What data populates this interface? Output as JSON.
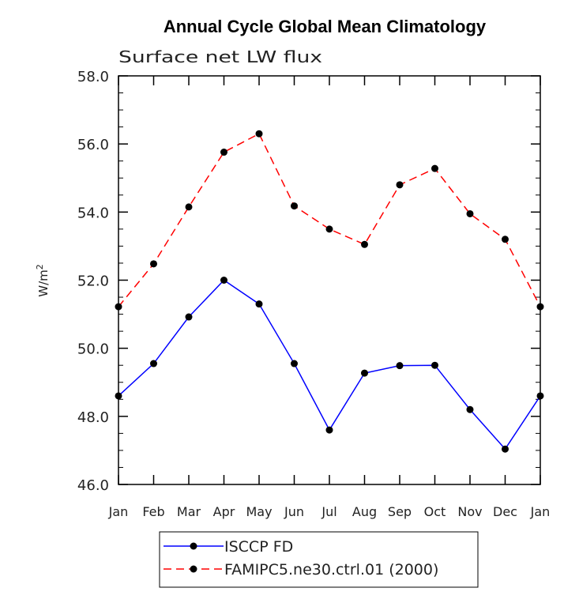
{
  "chart_data": {
    "type": "line",
    "title": "Annual Cycle Global Mean Climatology",
    "subtitle": "Surface net LW flux",
    "xlabel": "",
    "ylabel": "W/m",
    "ylabel_superscript": "2",
    "ylim": [
      46.0,
      58.0
    ],
    "y_ticks": [
      "46.0",
      "48.0",
      "50.0",
      "52.0",
      "54.0",
      "56.0",
      "58.0"
    ],
    "categories": [
      "Jan",
      "Feb",
      "Mar",
      "Apr",
      "May",
      "Jun",
      "Jul",
      "Aug",
      "Sep",
      "Oct",
      "Nov",
      "Dec",
      "Jan"
    ],
    "series": [
      {
        "name": "ISCCP FD",
        "color": "#0000ff",
        "dash": "solid",
        "values": [
          48.6,
          49.55,
          50.92,
          52.0,
          51.3,
          49.55,
          47.6,
          49.27,
          49.49,
          49.5,
          48.2,
          47.04,
          48.6
        ]
      },
      {
        "name": "FAMIPC5.ne30.ctrl.01 (2000)",
        "color": "#ff0000",
        "dash": "dashed",
        "values": [
          51.22,
          52.48,
          54.15,
          55.76,
          56.3,
          54.18,
          53.5,
          53.05,
          54.8,
          55.28,
          53.95,
          53.2,
          51.22
        ]
      }
    ],
    "legend_position": "bottom-center",
    "grid": false
  }
}
